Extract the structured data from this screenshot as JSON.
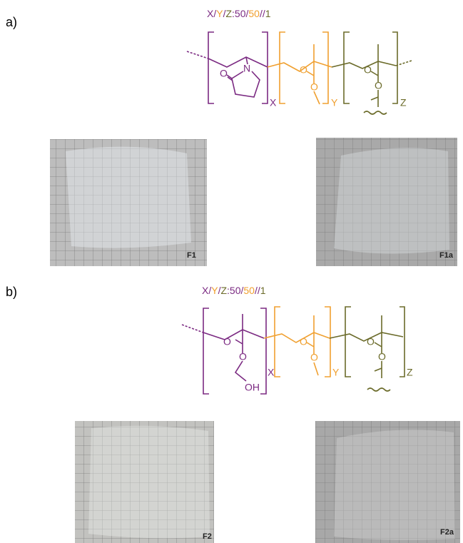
{
  "panels": [
    {
      "label": "a)",
      "ratio": [
        "X",
        "/",
        "Y",
        "/",
        "Z",
        ":50/",
        "50",
        "//",
        "1"
      ],
      "atoms": [
        "N",
        "O",
        "O",
        "O",
        "O",
        "O"
      ],
      "subscripts": [
        "X",
        "Y",
        "Z"
      ],
      "photos": [
        "F1",
        "F1a"
      ]
    },
    {
      "label": "b)",
      "ratio": [
        "X",
        "/",
        "Y",
        "/",
        "Z",
        ":50/",
        "50",
        "//",
        "1"
      ],
      "atoms": [
        "O",
        "O",
        "OH",
        "O",
        "O",
        "O",
        "O"
      ],
      "subscripts": [
        "X",
        "Y",
        "Z"
      ],
      "photos": [
        "F2",
        "F2a"
      ]
    }
  ]
}
